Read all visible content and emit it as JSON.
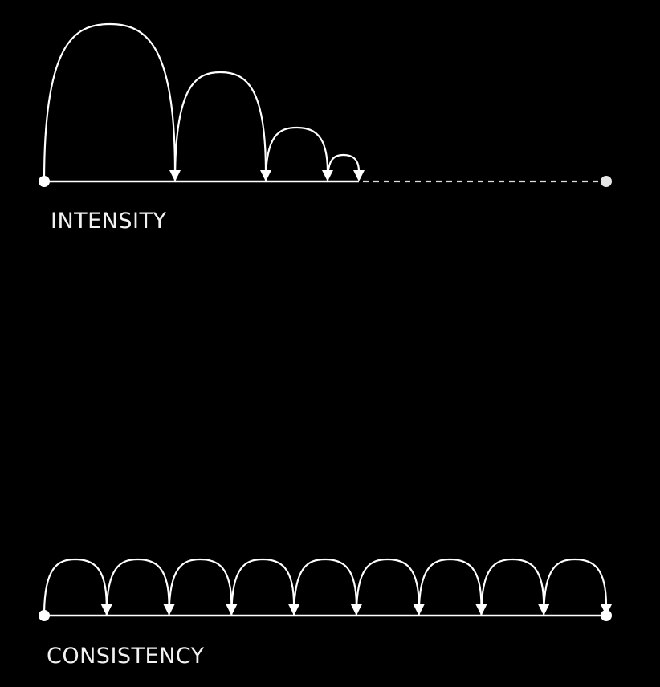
{
  "background_color": "#000000",
  "stroke_color": "#ffffff",
  "intensity": {
    "label": "INTENSITY",
    "jumps": 4,
    "completed_fraction": 0.56
  },
  "consistency": {
    "label": "CONSISTENCY",
    "jumps": 9,
    "completed_fraction": 1.0
  }
}
